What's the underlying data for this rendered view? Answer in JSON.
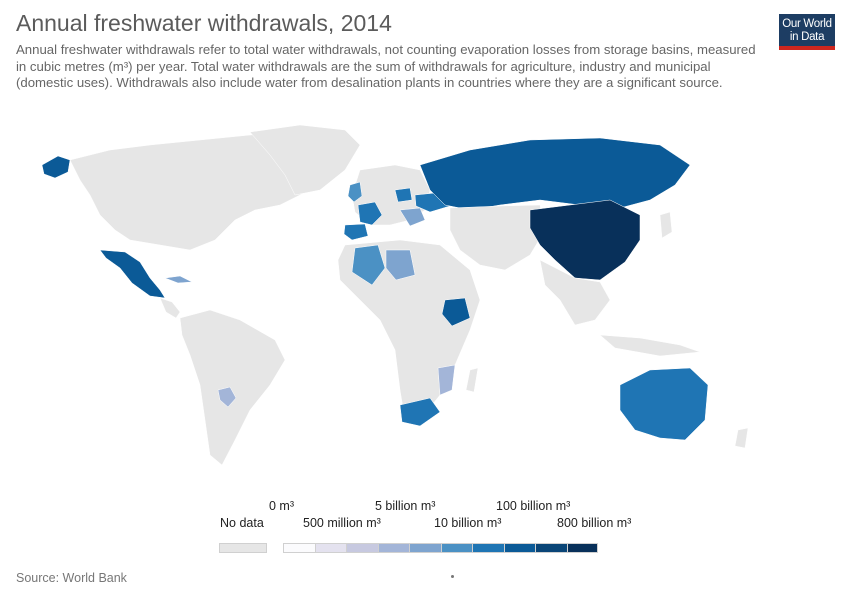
{
  "title": "Annual freshwater withdrawals, 2014",
  "subtitle": "Annual freshwater withdrawals refer to total water withdrawals, not counting evaporation losses from storage basins, measured in cubic metres (m³) per year. Total water withdrawals are the sum of withdrawals for agriculture, industry and municipal (domestic uses). Withdrawals also include water from desalination plants in countries where they are a significant source.",
  "logo": {
    "line1": "Our World",
    "line2": "in Data"
  },
  "source": "Source: World Bank",
  "colors": {
    "no_data": "#e6e6e6",
    "accent_logo": "#1d3d63",
    "accent_logo_bar": "#ce261e"
  },
  "legend": {
    "no_data_label": "No data",
    "bins": [
      {
        "color": "#fbfbfd"
      },
      {
        "color": "#e4e2ef"
      },
      {
        "color": "#c7c9e0"
      },
      {
        "color": "#a3b5d8"
      },
      {
        "color": "#7ea4cf"
      },
      {
        "color": "#4b91c4"
      },
      {
        "color": "#1f75b4"
      },
      {
        "color": "#0b5a97"
      },
      {
        "color": "#0a4577"
      },
      {
        "color": "#08305a"
      }
    ],
    "upper_labels": [
      "0 m³",
      "5 billion m³",
      "100 billion m³"
    ],
    "lower_labels": [
      "500 million m³",
      "10 billion m³",
      "800 billion m³"
    ]
  },
  "map_data": {
    "type": "choropleth",
    "highlighted_countries": [
      {
        "name": "China",
        "bin": 9
      },
      {
        "name": "Russia",
        "bin": 7
      },
      {
        "name": "Mexico",
        "bin": 7
      },
      {
        "name": "Australia",
        "bin": 6
      },
      {
        "name": "South Africa",
        "bin": 6
      },
      {
        "name": "Ethiopia",
        "bin": 7
      },
      {
        "name": "Spain",
        "bin": 6
      },
      {
        "name": "France",
        "bin": 6
      },
      {
        "name": "United Kingdom",
        "bin": 5
      },
      {
        "name": "Ukraine",
        "bin": 6
      },
      {
        "name": "Algeria",
        "bin": 5
      },
      {
        "name": "Libya",
        "bin": 4
      },
      {
        "name": "Mozambique",
        "bin": 3
      },
      {
        "name": "Paraguay",
        "bin": 3
      },
      {
        "name": "Cuba",
        "bin": 4
      },
      {
        "name": "Alaska region",
        "bin": 6
      }
    ]
  }
}
